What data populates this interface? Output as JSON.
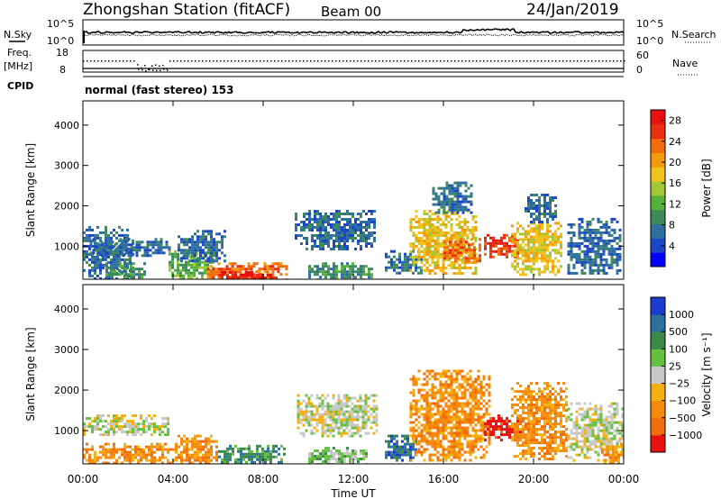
{
  "header": {
    "station": "Zhongshan Station (fitACF)",
    "beam": "Beam 00",
    "date": "24/Jan/2019"
  },
  "side_labels": {
    "nsky": "N.Sky",
    "freq": "Freq.",
    "mhz": "[MHz]",
    "cpid": "CPID",
    "nsearch": "N.Search",
    "nave": "Nave"
  },
  "top_panels": {
    "noise": {
      "left_top": "10^5",
      "left_bottom": "10^0",
      "right_top": "10^5",
      "right_bottom": "10^0"
    },
    "freq": {
      "left_top": "18",
      "left_bottom": "8",
      "right_top": "60",
      "right_bottom": "0"
    },
    "cpid_text": "normal (fast stereo) 153"
  },
  "chart_data": [
    {
      "type": "heatmap",
      "xlabel": "Time UT",
      "ylabel": "Slant Range [km]",
      "x_ticks": [
        "00:00",
        "04:00",
        "08:00",
        "12:00",
        "16:00",
        "20:00",
        "00:00"
      ],
      "x_range_hours": [
        0,
        24
      ],
      "y_ticks": [
        "1000",
        "2000",
        "3000",
        "4000"
      ],
      "ylim": [
        180,
        4600
      ],
      "colorbar": {
        "label": "Power [dB]",
        "ticks": [
          "4",
          "8",
          "12",
          "16",
          "20",
          "24",
          "28"
        ],
        "range": [
          0,
          30
        ],
        "colors": [
          "#0000ff",
          "#1c46c8",
          "#2f6fa0",
          "#3f8a5a",
          "#55b03c",
          "#a3c832",
          "#f2c21c",
          "#f59a0c",
          "#f26d0a",
          "#e83010",
          "#e81010"
        ]
      },
      "regions": [
        {
          "t0": 0.0,
          "t1": 2.2,
          "r0": 180,
          "r1": 1500,
          "value": 8
        },
        {
          "t0": 0.3,
          "t1": 3.8,
          "r0": 750,
          "r1": 1200,
          "value": 6
        },
        {
          "t0": 1.0,
          "t1": 2.8,
          "r0": 180,
          "r1": 600,
          "value": 10
        },
        {
          "t0": 3.8,
          "t1": 5.8,
          "r0": 180,
          "r1": 900,
          "value": 12
        },
        {
          "t0": 4.2,
          "t1": 6.3,
          "r0": 600,
          "r1": 1400,
          "value": 6
        },
        {
          "t0": 5.5,
          "t1": 9.0,
          "r0": 180,
          "r1": 600,
          "value": 24
        },
        {
          "t0": 6.0,
          "t1": 8.6,
          "r0": 180,
          "r1": 380,
          "value": 28
        },
        {
          "t0": 9.4,
          "t1": 13.0,
          "r0": 900,
          "r1": 1900,
          "value": 7
        },
        {
          "t0": 10.0,
          "t1": 12.8,
          "r0": 180,
          "r1": 600,
          "value": 9
        },
        {
          "t0": 13.4,
          "t1": 15.0,
          "r0": 300,
          "r1": 900,
          "value": 7
        },
        {
          "t0": 14.5,
          "t1": 17.5,
          "r0": 300,
          "r1": 1900,
          "value": 18
        },
        {
          "t0": 15.5,
          "t1": 17.2,
          "r0": 1800,
          "r1": 2600,
          "value": 6
        },
        {
          "t0": 16.0,
          "t1": 17.6,
          "r0": 600,
          "r1": 1200,
          "value": 24
        },
        {
          "t0": 17.8,
          "t1": 19.3,
          "r0": 700,
          "r1": 1300,
          "value": 27
        },
        {
          "t0": 19.0,
          "t1": 21.2,
          "r0": 300,
          "r1": 1600,
          "value": 18
        },
        {
          "t0": 19.6,
          "t1": 21.0,
          "r0": 1600,
          "r1": 2300,
          "value": 6
        },
        {
          "t0": 21.5,
          "t1": 23.9,
          "r0": 300,
          "r1": 1700,
          "value": 8
        }
      ]
    },
    {
      "type": "heatmap",
      "xlabel": "Time UT",
      "ylabel": "Slant Range [km]",
      "x_ticks": [
        "00:00",
        "04:00",
        "08:00",
        "12:00",
        "16:00",
        "20:00",
        "00:00"
      ],
      "x_range_hours": [
        0,
        24
      ],
      "y_ticks": [
        "1000",
        "2000",
        "3000",
        "4000"
      ],
      "ylim": [
        180,
        4600
      ],
      "colorbar": {
        "label": "Velocity [m s⁻¹]",
        "ticks": [
          "1000",
          "500",
          "100",
          "25",
          "−25",
          "−100",
          "−500",
          "−1000"
        ],
        "colors": [
          "#1c3cd0",
          "#2f6fa0",
          "#3c8a4a",
          "#66c040",
          "#c8c8c8",
          "#f5b010",
          "#f58a0c",
          "#f26d0a",
          "#e81010"
        ]
      },
      "regions": [
        {
          "t0": 0.0,
          "t1": 3.8,
          "r0": 900,
          "r1": 1400,
          "value": "#c8c8c8"
        },
        {
          "t0": 0.0,
          "t1": 4.2,
          "r0": 180,
          "r1": 700,
          "value": "#f58a0c"
        },
        {
          "t0": 4.2,
          "t1": 6.0,
          "r0": 180,
          "r1": 900,
          "value": "#f58a0c"
        },
        {
          "t0": 6.0,
          "t1": 9.0,
          "r0": 180,
          "r1": 650,
          "value": "#3c8a4a"
        },
        {
          "t0": 9.5,
          "t1": 13.0,
          "r0": 900,
          "r1": 1900,
          "value": "#c8c8c8"
        },
        {
          "t0": 10.0,
          "t1": 12.6,
          "r0": 180,
          "r1": 600,
          "value": "#66c040"
        },
        {
          "t0": 13.4,
          "t1": 14.8,
          "r0": 300,
          "r1": 900,
          "value": "#2f6fa0"
        },
        {
          "t0": 14.5,
          "t1": 18.0,
          "r0": 300,
          "r1": 2500,
          "value": "#f58a0c"
        },
        {
          "t0": 17.8,
          "t1": 19.4,
          "r0": 800,
          "r1": 1400,
          "value": "#e81010"
        },
        {
          "t0": 19.0,
          "t1": 21.5,
          "r0": 300,
          "r1": 2200,
          "value": "#f58a0c"
        },
        {
          "t0": 21.5,
          "t1": 24.0,
          "r0": 300,
          "r1": 1700,
          "value": "#c8c8c8"
        },
        {
          "t0": 23.0,
          "t1": 24.0,
          "r0": 180,
          "r1": 700,
          "value": "#f58a0c"
        }
      ]
    }
  ]
}
